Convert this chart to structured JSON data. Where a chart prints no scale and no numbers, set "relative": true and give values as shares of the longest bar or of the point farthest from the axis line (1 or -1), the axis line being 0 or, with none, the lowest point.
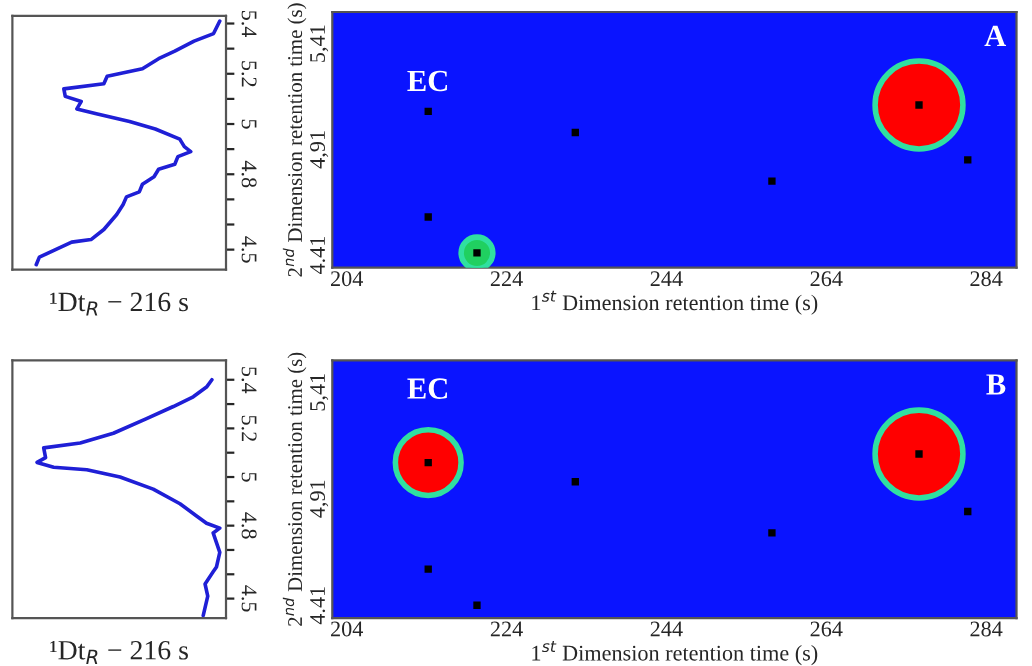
{
  "chart_data": [
    {
      "type": "line",
      "orientation": "horizontal",
      "relative": true,
      "xlabel": "¹Dt$_{R}$ − 216 s",
      "tick_labels": "y",
      "ylim": [
        4.42,
        5.43
      ],
      "yticks": [
        4.5,
        {
          "value": 4.6,
          "label": null
        },
        {
          "value": 4.7,
          "label": null
        },
        4.8,
        {
          "value": 4.9,
          "label": null
        },
        5,
        {
          "value": 5.1,
          "label": null
        },
        5.2,
        {
          "value": 5.3,
          "label": null
        },
        5.4
      ],
      "series": [
        {
          "color": "#1f1fd6",
          "x": [
            5.41,
            5.36,
            5.33,
            5.29,
            5.26,
            5.22,
            5.19,
            5.16,
            5.14,
            5.11,
            5.09,
            5.06,
            5.04,
            5.01,
            4.98,
            4.94,
            4.91,
            4.89,
            4.87,
            4.84,
            4.82,
            4.79,
            4.76,
            4.73,
            4.71,
            4.68,
            4.64,
            4.58,
            4.54,
            4.53,
            4.5,
            4.47,
            4.44
          ],
          "values": [
            1.0,
            0.97,
            0.876,
            0.783,
            0.705,
            0.627,
            0.457,
            0.441,
            0.248,
            0.255,
            0.332,
            0.311,
            0.41,
            0.565,
            0.689,
            0.807,
            0.829,
            0.86,
            0.798,
            0.783,
            0.705,
            0.683,
            0.627,
            0.612,
            0.55,
            0.534,
            0.503,
            0.441,
            0.379,
            0.286,
            0.208,
            0.13,
            0.115
          ]
        }
      ]
    },
    {
      "type": "scatter",
      "xlabel": "1$^{st}$ Dimension retention time (s)",
      "ylabel": "2$^{nd}$ Dimension retention time (s)",
      "xlim": [
        202.2,
        287.8
      ],
      "xticks": [
        204,
        224,
        244,
        264,
        284
      ],
      "ylim": [
        4.35,
        5.56
      ],
      "yticks": [
        4.41,
        {
          "value": 4.91,
          "label": "4,91"
        },
        {
          "value": 5.41,
          "label": "5,41"
        }
      ],
      "annotations": [
        "EC",
        "A"
      ],
      "series": [
        {
          "type": "bubble",
          "x": [
            220.3,
            275.6
          ],
          "values": [
            4.42,
            5.12
          ],
          "sizes": [
            0.13,
            1
          ],
          "colors": [
            "#20d060",
            "#ff0000"
          ]
        },
        {
          "type": "scatter",
          "color": "#000000",
          "marker": "square",
          "x": [
            214.2,
            214.2,
            220.3,
            232.6,
            257.2,
            275.6,
            281.7
          ],
          "values": [
            5.09,
            4.59,
            4.42,
            4.99,
            4.76,
            5.12,
            4.86
          ]
        }
      ]
    },
    {
      "type": "line",
      "orientation": "horizontal",
      "relative": true,
      "xlabel": "¹Dt$_{R}$ − 216 s",
      "tick_labels": "y",
      "ylim": [
        4.42,
        5.48
      ],
      "yticks": [
        4.5,
        {
          "value": 4.6,
          "label": null
        },
        {
          "value": 4.7,
          "label": null
        },
        4.8,
        {
          "value": 4.9,
          "label": null
        },
        5,
        {
          "value": 5.1,
          "label": null
        },
        5.2,
        {
          "value": 5.3,
          "label": null
        },
        5.4
      ],
      "series": [
        {
          "color": "#1f1fd6",
          "x": [
            5.4,
            5.37,
            5.33,
            5.29,
            5.24,
            5.18,
            5.14,
            5.12,
            5.08,
            5.06,
            5.04,
            5.03,
            5.0,
            4.95,
            4.89,
            4.84,
            4.81,
            4.79,
            4.77,
            4.73,
            4.69,
            4.63,
            4.61,
            4.56,
            4.51,
            4.43
          ],
          "values": [
            0.962,
            0.936,
            0.872,
            0.776,
            0.647,
            0.487,
            0.327,
            0.151,
            0.16,
            0.119,
            0.199,
            0.359,
            0.519,
            0.679,
            0.808,
            0.888,
            0.936,
            1.0,
            0.968,
            0.984,
            1.0,
            0.984,
            0.968,
            0.929,
            0.942,
            0.92
          ]
        }
      ]
    },
    {
      "type": "scatter",
      "xlabel": "1$^{st}$ Dimension retention time (s)",
      "ylabel": "2$^{nd}$ Dimension retention time (s)",
      "xlim": [
        202.2,
        287.8
      ],
      "xticks": [
        204,
        224,
        244,
        264,
        284
      ],
      "ylim": [
        4.35,
        5.56
      ],
      "yticks": [
        4.41,
        {
          "value": 4.91,
          "label": "4,91"
        },
        {
          "value": 5.41,
          "label": "5,41"
        }
      ],
      "annotations": [
        "EC",
        "B"
      ],
      "series": [
        {
          "type": "bubble",
          "x": [
            214.2,
            275.6
          ],
          "values": [
            5.08,
            5.12
          ],
          "sizes": [
            0.56,
            1
          ],
          "colors": [
            "#ff0000",
            "#ff0000"
          ]
        },
        {
          "type": "scatter",
          "color": "#000000",
          "marker": "square",
          "x": [
            214.2,
            214.2,
            220.3,
            232.6,
            257.2,
            275.6,
            281.7
          ],
          "values": [
            5.08,
            4.58,
            4.41,
            4.99,
            4.75,
            5.12,
            4.85
          ]
        }
      ]
    }
  ]
}
